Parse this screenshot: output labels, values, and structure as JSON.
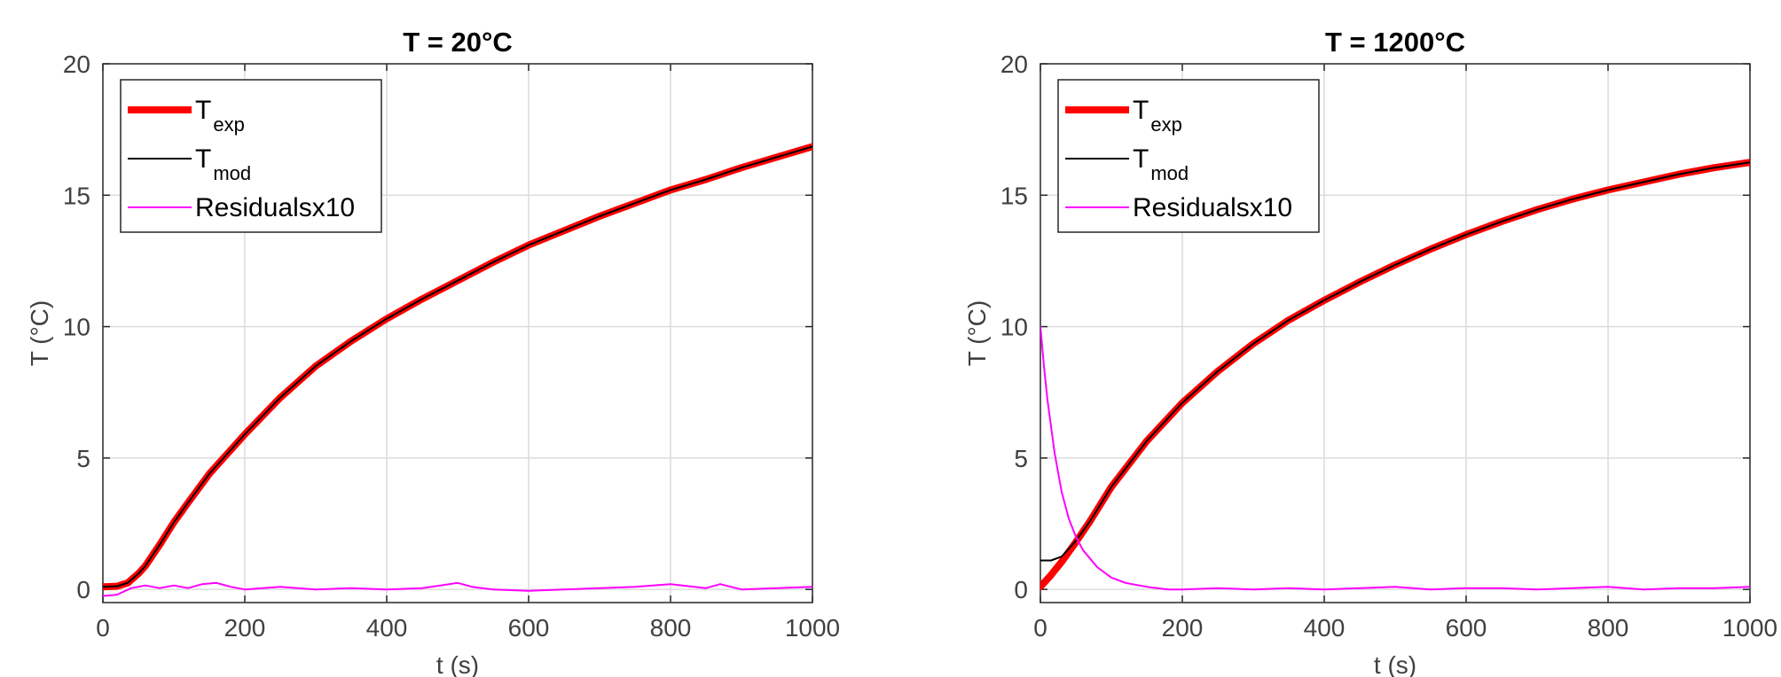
{
  "chart_data": [
    {
      "type": "line",
      "title": "T = 20°C",
      "xlabel": "t (s)",
      "ylabel": "T (°C)",
      "xlim": [
        0,
        1000
      ],
      "ylim": [
        -0.5,
        20
      ],
      "xticks": [
        0,
        200,
        400,
        600,
        800,
        1000
      ],
      "yticks": [
        0,
        5,
        10,
        15,
        20
      ],
      "grid": true,
      "legend_position": "top-left",
      "series": [
        {
          "name": "T",
          "name_sub": "exp",
          "color": "#ff0000",
          "line_width": 8,
          "x": [
            0,
            20,
            35,
            50,
            60,
            80,
            100,
            120,
            150,
            200,
            250,
            300,
            350,
            400,
            450,
            500,
            550,
            600,
            650,
            700,
            750,
            800,
            850,
            900,
            950,
            1000
          ],
          "y": [
            0.1,
            0.12,
            0.25,
            0.6,
            0.9,
            1.7,
            2.55,
            3.3,
            4.4,
            5.9,
            7.3,
            8.5,
            9.45,
            10.3,
            11.05,
            11.75,
            12.45,
            13.1,
            13.65,
            14.2,
            14.7,
            15.2,
            15.6,
            16.05,
            16.45,
            16.85
          ]
        },
        {
          "name": "T",
          "name_sub": "mod",
          "color": "#000000",
          "line_width": 2,
          "x": [
            0,
            20,
            35,
            50,
            60,
            80,
            100,
            120,
            150,
            200,
            250,
            300,
            350,
            400,
            450,
            500,
            550,
            600,
            650,
            700,
            750,
            800,
            850,
            900,
            950,
            1000
          ],
          "y": [
            0.1,
            0.12,
            0.25,
            0.6,
            0.9,
            1.7,
            2.55,
            3.3,
            4.4,
            5.9,
            7.3,
            8.5,
            9.45,
            10.3,
            11.05,
            11.75,
            12.45,
            13.1,
            13.65,
            14.2,
            14.7,
            15.2,
            15.6,
            16.05,
            16.45,
            16.85
          ]
        },
        {
          "name": "Residualsx10",
          "color": "#ff00ff",
          "line_width": 2,
          "x": [
            0,
            20,
            40,
            60,
            80,
            100,
            120,
            140,
            160,
            180,
            200,
            250,
            300,
            350,
            400,
            450,
            500,
            520,
            550,
            600,
            650,
            700,
            750,
            800,
            850,
            870,
            900,
            950,
            1000
          ],
          "y": [
            -0.25,
            -0.2,
            0.05,
            0.15,
            0.05,
            0.15,
            0.05,
            0.2,
            0.25,
            0.1,
            0.0,
            0.1,
            0.0,
            0.05,
            0.0,
            0.05,
            0.25,
            0.1,
            0.0,
            -0.05,
            0.0,
            0.05,
            0.1,
            0.2,
            0.05,
            0.2,
            0.0,
            0.05,
            0.1
          ]
        }
      ]
    },
    {
      "type": "line",
      "title": "T = 1200°C",
      "xlabel": "t (s)",
      "ylabel": "T (°C)",
      "xlim": [
        0,
        1000
      ],
      "ylim": [
        -0.5,
        20
      ],
      "xticks": [
        0,
        200,
        400,
        600,
        800,
        1000
      ],
      "yticks": [
        0,
        5,
        10,
        15,
        20
      ],
      "grid": true,
      "legend_position": "top-left",
      "series": [
        {
          "name": "T",
          "name_sub": "exp",
          "color": "#ff0000",
          "line_width": 8,
          "x": [
            0,
            15,
            30,
            50,
            70,
            100,
            150,
            200,
            250,
            300,
            350,
            400,
            450,
            500,
            550,
            600,
            650,
            700,
            750,
            800,
            850,
            900,
            950,
            1000
          ],
          "y": [
            0.1,
            0.55,
            1.05,
            1.8,
            2.6,
            3.9,
            5.65,
            7.1,
            8.3,
            9.35,
            10.25,
            11.0,
            11.7,
            12.35,
            12.95,
            13.5,
            14.0,
            14.45,
            14.85,
            15.2,
            15.5,
            15.8,
            16.05,
            16.25
          ]
        },
        {
          "name": "T",
          "name_sub": "mod",
          "color": "#000000",
          "line_width": 2,
          "x": [
            0,
            15,
            30,
            50,
            70,
            100,
            150,
            200,
            250,
            300,
            350,
            400,
            450,
            500,
            550,
            600,
            650,
            700,
            750,
            800,
            850,
            900,
            950,
            1000
          ],
          "y": [
            1.1,
            1.1,
            1.25,
            1.85,
            2.6,
            3.9,
            5.65,
            7.1,
            8.3,
            9.35,
            10.25,
            11.0,
            11.7,
            12.35,
            12.95,
            13.5,
            14.0,
            14.45,
            14.85,
            15.2,
            15.5,
            15.8,
            16.05,
            16.25
          ]
        },
        {
          "name": "Residualsx10",
          "color": "#ff00ff",
          "line_width": 2,
          "x": [
            0,
            5,
            10,
            20,
            30,
            40,
            50,
            60,
            80,
            100,
            120,
            150,
            180,
            200,
            250,
            300,
            350,
            400,
            450,
            500,
            550,
            600,
            650,
            700,
            750,
            800,
            850,
            900,
            950,
            1000
          ],
          "y": [
            10.0,
            8.5,
            7.2,
            5.2,
            3.7,
            2.7,
            2.0,
            1.5,
            0.85,
            0.45,
            0.25,
            0.1,
            0.0,
            0.0,
            0.05,
            0.0,
            0.05,
            0.0,
            0.05,
            0.1,
            0.0,
            0.05,
            0.05,
            0.0,
            0.05,
            0.1,
            0.0,
            0.05,
            0.05,
            0.1
          ]
        }
      ]
    }
  ]
}
